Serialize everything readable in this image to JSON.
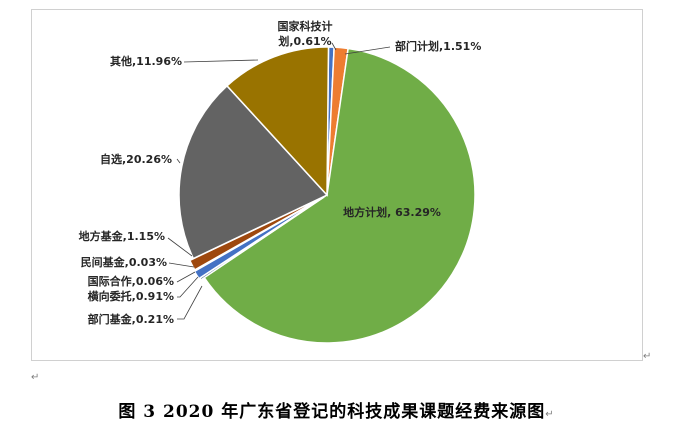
{
  "chart_data": {
    "type": "pie",
    "slices": [
      {
        "name": "国家科技计划",
        "value": 0.61,
        "label_line1": "国家科技计",
        "label_line2": "划,0.61%",
        "color": "#4472c4"
      },
      {
        "name": "部门计划",
        "value": 1.51,
        "label": "部门计划,1.51%",
        "color": "#ed7d31"
      },
      {
        "name": "地方计划",
        "value": 63.29,
        "label": "地方计划, 63.29%",
        "color": "#70ad47"
      },
      {
        "name": "部门基金",
        "value": 0.21,
        "label": "部门基金,0.21%",
        "color": "#264478"
      },
      {
        "name": "横向委托",
        "value": 0.91,
        "label": "横向委托,0.91%",
        "color": "#4472c4"
      },
      {
        "name": "国际合作",
        "value": 0.06,
        "label": "国际合作,0.06%",
        "color": "#a5a5a5"
      },
      {
        "name": "民间基金",
        "value": 0.03,
        "label": "民间基金,0.03%",
        "color": "#ffc000"
      },
      {
        "name": "地方基金",
        "value": 1.15,
        "label": "地方基金,1.15%",
        "color": "#9e480e"
      },
      {
        "name": "自选",
        "value": 20.26,
        "label": "自选,20.26%",
        "color": "#636363"
      },
      {
        "name": "其他",
        "value": 11.96,
        "label": "其他,11.96%",
        "color": "#997300"
      }
    ]
  },
  "caption": "图 3   2020 年广东省登记的科技成果课题经费来源图"
}
